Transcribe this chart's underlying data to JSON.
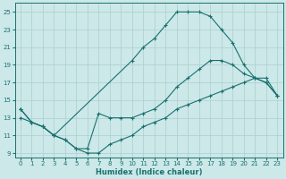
{
  "xlabel": "Humidex (Indice chaleur)",
  "xlim": [
    -0.5,
    23.5
  ],
  "ylim": [
    8.5,
    26
  ],
  "xticks": [
    0,
    1,
    2,
    3,
    4,
    5,
    6,
    7,
    8,
    9,
    10,
    11,
    12,
    13,
    14,
    15,
    16,
    17,
    18,
    19,
    20,
    21,
    22,
    23
  ],
  "yticks": [
    9,
    11,
    13,
    15,
    17,
    19,
    21,
    23,
    25
  ],
  "bg_color": "#cce8e8",
  "grid_color": "#aacfcf",
  "line_color": "#1a7070",
  "line1_x": [
    0,
    1,
    2,
    3,
    10,
    11,
    12,
    13,
    14,
    15,
    16,
    17,
    18,
    19,
    20,
    21,
    22,
    23
  ],
  "line1_y": [
    14,
    12.5,
    12,
    11,
    19.5,
    21,
    22,
    23.5,
    25,
    25,
    25,
    24.5,
    23,
    21.5,
    19,
    17.5,
    17,
    15.5
  ],
  "line2_x": [
    0,
    1,
    2,
    3,
    4,
    5,
    6,
    7,
    8,
    9,
    10,
    11,
    12,
    13,
    14,
    15,
    16,
    17,
    18,
    19,
    20,
    21,
    22,
    23
  ],
  "line2_y": [
    14,
    12.5,
    12,
    11,
    10.5,
    9.5,
    9.5,
    13.5,
    13,
    13,
    13,
    13.5,
    14,
    15,
    16.5,
    17.5,
    18.5,
    19.5,
    19.5,
    19,
    18,
    17.5,
    17,
    15.5
  ],
  "line3_x": [
    0,
    1,
    2,
    3,
    4,
    5,
    6,
    7,
    8,
    9,
    10,
    11,
    12,
    13,
    14,
    15,
    16,
    17,
    18,
    19,
    20,
    21,
    22,
    23
  ],
  "line3_y": [
    13,
    12.5,
    12,
    11,
    10.5,
    9.5,
    9,
    9,
    10,
    10.5,
    11,
    12,
    12.5,
    13,
    14,
    14.5,
    15,
    15.5,
    16,
    16.5,
    17,
    17.5,
    17.5,
    15.5
  ]
}
